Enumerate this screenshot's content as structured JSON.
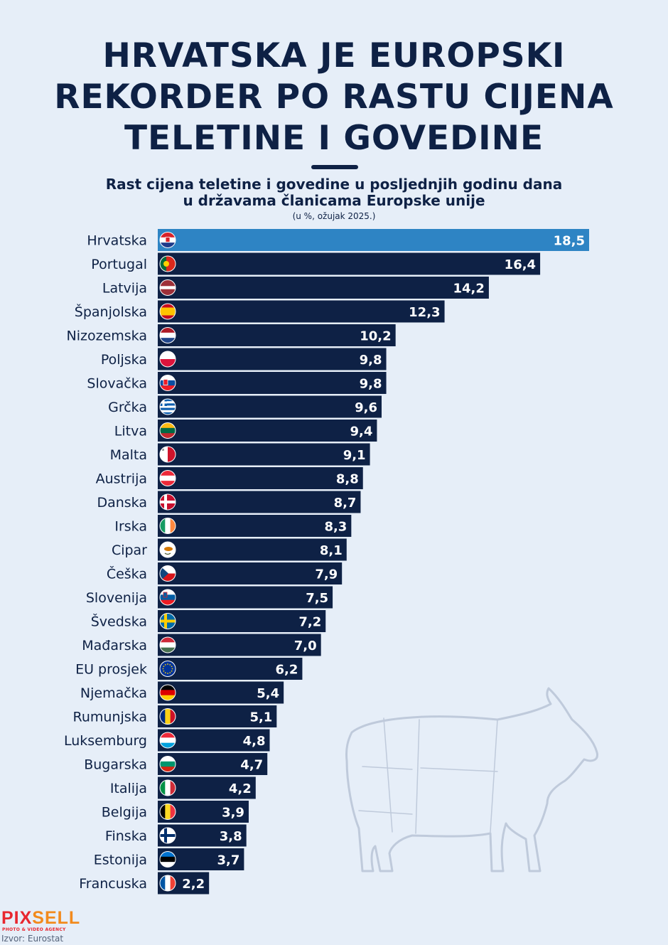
{
  "chart_data": {
    "type": "bar",
    "orientation": "horizontal",
    "title": "HRVATSKA JE EUROPSKI\nREKORDER PO RASTU CIJENA\nTELETINE I GOVEDINE",
    "subtitle": "Rast cijena teletine i govedine u posljednjih godinu dana\nu državama članicama Europske unije",
    "unit_note": "(u %, ožujak 2025.)",
    "categories": [
      "Hrvatska",
      "Portugal",
      "Latvija",
      "Španjolska",
      "Nizozemska",
      "Poljska",
      "Slovačka",
      "Grčka",
      "Litva",
      "Malta",
      "Austrija",
      "Danska",
      "Irska",
      "Cipar",
      "Češka",
      "Slovenija",
      "Švedska",
      "Mađarska",
      "EU prosjek",
      "Njemačka",
      "Rumunjska",
      "Luksemburg",
      "Bugarska",
      "Italija",
      "Belgija",
      "Finska",
      "Estonija",
      "Francuska"
    ],
    "values": [
      18.5,
      16.4,
      14.2,
      12.3,
      10.2,
      9.8,
      9.8,
      9.6,
      9.4,
      9.1,
      8.8,
      8.7,
      8.3,
      8.1,
      7.9,
      7.5,
      7.2,
      7.0,
      6.2,
      5.4,
      5.1,
      4.8,
      4.7,
      4.2,
      3.9,
      3.8,
      3.7,
      2.2
    ],
    "value_labels": [
      "18,5",
      "16,4",
      "14,2",
      "12,3",
      "10,2",
      "9,8",
      "9,8",
      "9,6",
      "9,4",
      "9,1",
      "8,8",
      "8,7",
      "8,3",
      "8,1",
      "7,9",
      "7,5",
      "7,2",
      "7,0",
      "6,2",
      "5,4",
      "5,1",
      "4,8",
      "4,7",
      "4,2",
      "3,9",
      "3,8",
      "3,7",
      "2,2"
    ],
    "flag_icons": [
      "flag-croatia-icon",
      "flag-portugal-icon",
      "flag-latvia-icon",
      "flag-spain-icon",
      "flag-netherlands-icon",
      "flag-poland-icon",
      "flag-slovakia-icon",
      "flag-greece-icon",
      "flag-lithuania-icon",
      "flag-malta-icon",
      "flag-austria-icon",
      "flag-denmark-icon",
      "flag-ireland-icon",
      "flag-cyprus-icon",
      "flag-czechia-icon",
      "flag-slovenia-icon",
      "flag-sweden-icon",
      "flag-hungary-icon",
      "flag-eu-icon",
      "flag-germany-icon",
      "flag-romania-icon",
      "flag-luxembourg-icon",
      "flag-bulgaria-icon",
      "flag-italy-icon",
      "flag-belgium-icon",
      "flag-finland-icon",
      "flag-estonia-icon",
      "flag-france-icon"
    ],
    "xlim": [
      0,
      18.5
    ],
    "highlight_index": 0,
    "colors": {
      "bar": "#0e2145",
      "highlight": "#2e84c4",
      "background": "#e6eef8"
    },
    "grid": false,
    "legend": "none"
  },
  "branding": {
    "logo_part1": "PIX",
    "logo_part2": "SELL",
    "logo_sub": "PHOTO & VIDEO AGENCY"
  },
  "source": "Izvor: Eurostat",
  "decoration": {
    "icon": "cow-meat-cuts-icon"
  }
}
